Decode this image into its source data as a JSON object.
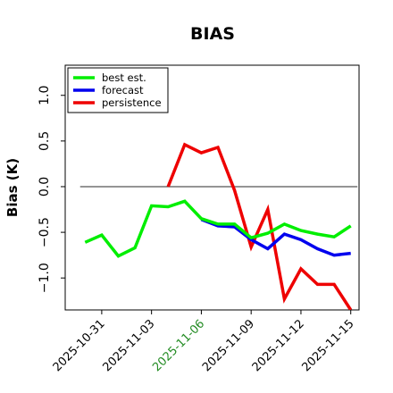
{
  "chart_data": {
    "type": "line",
    "title": "BIAS",
    "ylabel": "Bias (K)",
    "xlabel": "",
    "ylim": [
      -1.35,
      1.33
    ],
    "y_ticks": [
      1.0,
      0.5,
      0.0,
      -0.5,
      -1.0
    ],
    "y_tick_labels": [
      "1.0",
      "0.5",
      "0.0",
      "−0.5",
      "−1.0"
    ],
    "x_tick_labels": [
      {
        "day": -3,
        "label": "2025-10-31",
        "color": "#000000"
      },
      {
        "day": 0,
        "label": "2025-11-03",
        "color": "#000000"
      },
      {
        "day": 3,
        "label": "2025-11-06",
        "color": "#228B22"
      },
      {
        "day": 6,
        "label": "2025-11-09",
        "color": "#000000"
      },
      {
        "day": 9,
        "label": "2025-11-12",
        "color": "#000000"
      },
      {
        "day": 12,
        "label": "2025-11-15",
        "color": "#000000"
      }
    ],
    "reference_line": 0,
    "legend_position": "top-left",
    "series": [
      {
        "name": "best est.",
        "color": "#00ee00",
        "x": [
          -4,
          -3,
          -2,
          -1,
          0,
          1,
          2,
          3,
          4,
          5,
          6,
          7,
          8,
          9,
          10,
          11,
          12
        ],
        "y": [
          -0.61,
          -0.53,
          -0.76,
          -0.67,
          -0.21,
          -0.22,
          -0.16,
          -0.35,
          -0.41,
          -0.41,
          -0.56,
          -0.51,
          -0.41,
          -0.48,
          -0.52,
          -0.55,
          -0.43
        ]
      },
      {
        "name": "forecast",
        "color": "#0000ee",
        "x": [
          3,
          4,
          5,
          6,
          7,
          8,
          9,
          10,
          11,
          12
        ],
        "y": [
          -0.36,
          -0.43,
          -0.44,
          -0.58,
          -0.68,
          -0.52,
          -0.58,
          -0.68,
          -0.75,
          -0.73
        ]
      },
      {
        "name": "persistence",
        "color": "#ee0000",
        "x": [
          1,
          2,
          3,
          4,
          5,
          6,
          7,
          8,
          9,
          10,
          11,
          12
        ],
        "y": [
          0.0,
          0.46,
          0.37,
          0.43,
          -0.04,
          -0.66,
          -0.25,
          -1.23,
          -0.9,
          -1.07,
          -1.07,
          -1.35
        ]
      }
    ]
  }
}
